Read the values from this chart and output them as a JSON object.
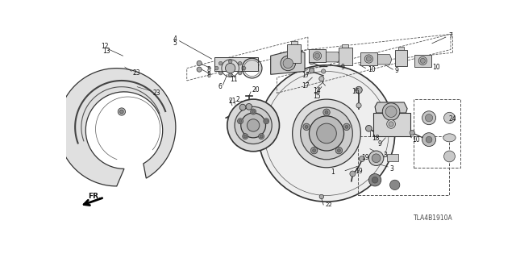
{
  "bg_color": "#ffffff",
  "line_color": "#222222",
  "part_number_text": "TLA4B1910A",
  "gray_light": "#e8e8e8",
  "gray_mid": "#cccccc",
  "gray_dark": "#888888"
}
